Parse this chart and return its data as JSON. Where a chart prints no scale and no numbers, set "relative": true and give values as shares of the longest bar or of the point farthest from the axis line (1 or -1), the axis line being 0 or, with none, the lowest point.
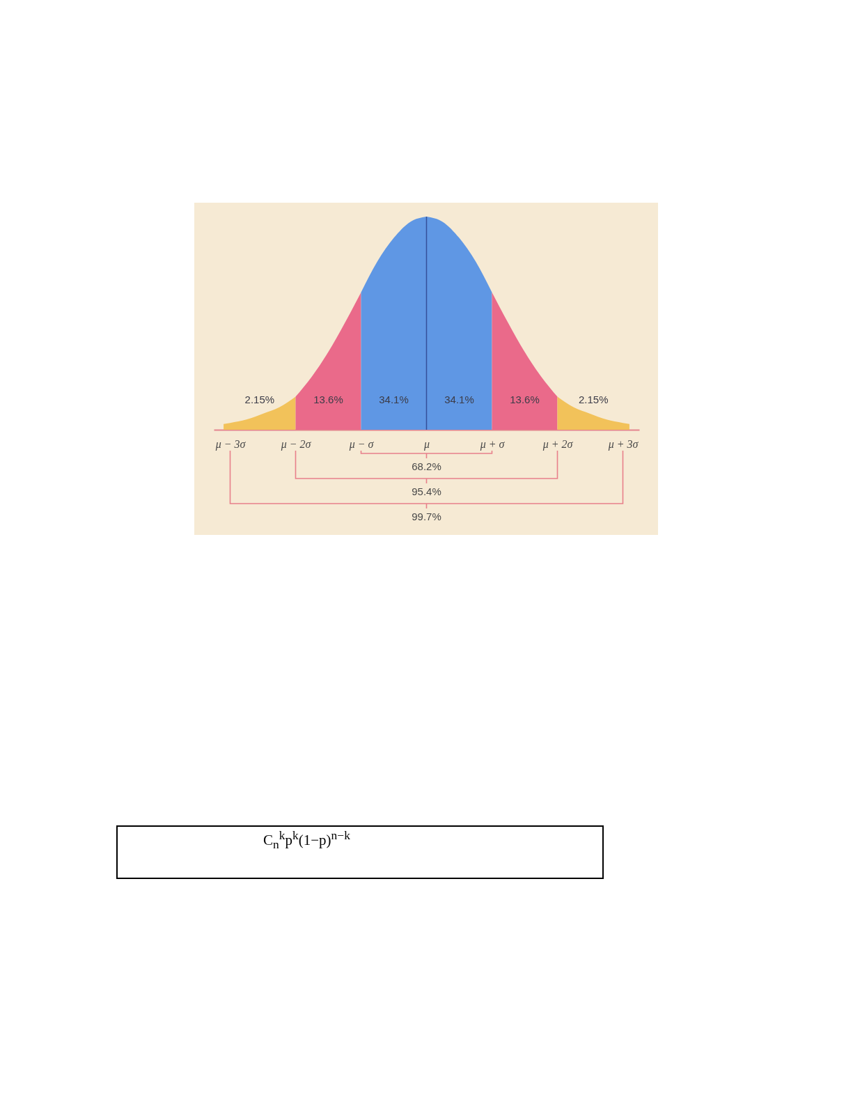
{
  "chart_data": {
    "type": "area",
    "relative": true,
    "xlim": [
      -3.25,
      3.25
    ],
    "xticks": [
      {
        "value": -3,
        "label": "μ − 3σ"
      },
      {
        "value": -2,
        "label": "μ − 2σ"
      },
      {
        "value": -1,
        "label": "μ − σ"
      },
      {
        "value": 0,
        "label": "μ"
      },
      {
        "value": 1,
        "label": "μ + σ"
      },
      {
        "value": 2,
        "label": "μ + 2σ"
      },
      {
        "value": 3,
        "label": "μ + 3σ"
      }
    ],
    "series": [
      {
        "color": "#f2c25a",
        "x": [
          -3.1,
          -3,
          -2.75,
          -2.5,
          -2.25,
          -2
        ],
        "values": [
          0.027,
          0.032,
          0.048,
          0.075,
          0.105,
          0.155
        ]
      },
      {
        "color": "#ea6a8a",
        "x": [
          -2,
          -1.75,
          -1.5,
          -1.25,
          -1
        ],
        "values": [
          0.155,
          0.25,
          0.365,
          0.5,
          0.645
        ]
      },
      {
        "color": "#5f97e4",
        "x": [
          -1,
          -0.75,
          -0.5,
          -0.25,
          0
        ],
        "values": [
          0.645,
          0.79,
          0.9,
          0.975,
          1
        ]
      },
      {
        "color": "#5f97e4",
        "x": [
          0,
          0.25,
          0.5,
          0.75,
          1
        ],
        "values": [
          1,
          0.975,
          0.9,
          0.79,
          0.645
        ]
      },
      {
        "color": "#ea6a8a",
        "x": [
          1,
          1.25,
          1.5,
          1.75,
          2
        ],
        "values": [
          0.645,
          0.5,
          0.365,
          0.25,
          0.155
        ]
      },
      {
        "color": "#f2c25a",
        "x": [
          2,
          2.25,
          2.5,
          2.75,
          3,
          3.1
        ],
        "values": [
          0.155,
          0.105,
          0.075,
          0.048,
          0.032,
          0.027
        ]
      }
    ],
    "ref_lines": [
      {
        "axis": "x",
        "value": 0,
        "color": "#34509a"
      }
    ],
    "annotations": [
      "2.15%",
      "13.6%",
      "34.1%",
      "34.1%",
      "13.6%",
      "2.15%",
      "68.2%",
      "95.4%",
      "99.7%",
      "C$_{n}$$^{k}$p$^{k}$(1−p)$^{n−k}$"
    ]
  }
}
